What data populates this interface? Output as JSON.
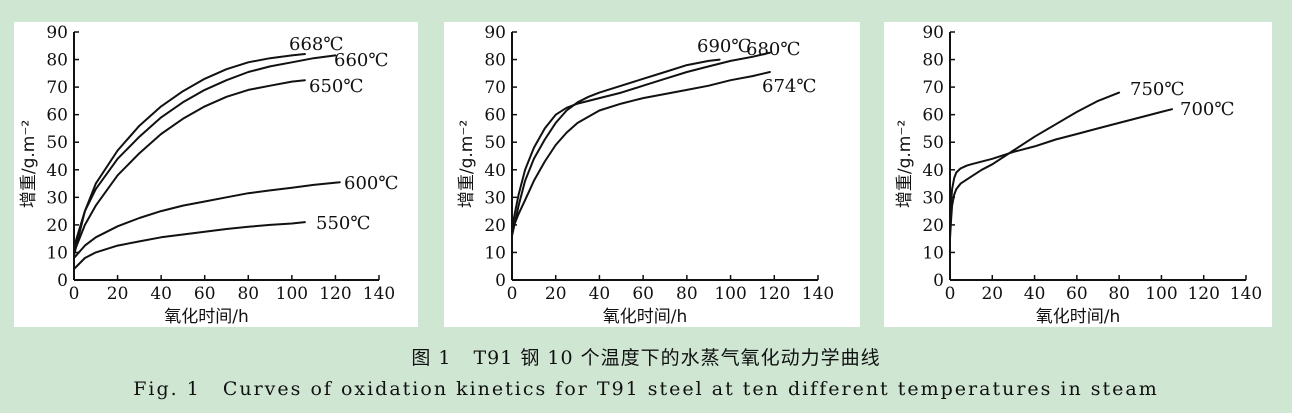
{
  "chart_data": [
    {
      "type": "line",
      "xlabel": "氧化时间/h",
      "ylabel": "增重/g.m⁻²",
      "xlim": [
        0,
        140
      ],
      "ylim": [
        0,
        90
      ],
      "xticks": [
        "0",
        "20",
        "40",
        "60",
        "80",
        "100",
        "120",
        "140"
      ],
      "yticks": [
        "0",
        "10",
        "20",
        "30",
        "40",
        "50",
        "60",
        "70",
        "80",
        "90"
      ],
      "series": [
        {
          "name": "668℃",
          "x": [
            0,
            5,
            10,
            20,
            30,
            40,
            50,
            60,
            70,
            80,
            90,
            100,
            106
          ],
          "y": [
            9,
            25,
            35,
            47,
            56,
            63,
            68.5,
            73,
            76.5,
            79,
            80.5,
            81.5,
            82
          ]
        },
        {
          "name": "660℃",
          "x": [
            0,
            5,
            10,
            20,
            30,
            40,
            50,
            60,
            70,
            80,
            90,
            100,
            110,
            120
          ],
          "y": [
            12,
            25,
            33,
            44,
            52,
            59,
            64.5,
            69,
            72.5,
            75.5,
            77.5,
            79,
            80.5,
            81.5
          ]
        },
        {
          "name": "650℃",
          "x": [
            0,
            5,
            10,
            20,
            30,
            40,
            50,
            60,
            70,
            80,
            90,
            100,
            106
          ],
          "y": [
            10,
            20,
            27,
            38,
            46,
            53,
            58.5,
            63,
            66.5,
            69,
            70.5,
            72,
            72.5
          ]
        },
        {
          "name": "600℃",
          "x": [
            0,
            5,
            10,
            20,
            30,
            40,
            50,
            60,
            70,
            80,
            90,
            100,
            110,
            122
          ],
          "y": [
            8,
            12.5,
            15.5,
            19.5,
            22.5,
            25,
            27,
            28.5,
            30,
            31.5,
            32.5,
            33.5,
            34.5,
            35.5
          ]
        },
        {
          "name": "550℃",
          "x": [
            0,
            5,
            10,
            20,
            30,
            40,
            50,
            60,
            70,
            80,
            90,
            100,
            106
          ],
          "y": [
            4,
            8,
            10,
            12.5,
            14,
            15.5,
            16.5,
            17.5,
            18.5,
            19.3,
            20,
            20.5,
            21
          ]
        }
      ]
    },
    {
      "type": "line",
      "xlabel": "氧化时间/h",
      "ylabel": "增重/g.m⁻²",
      "xlim": [
        0,
        140
      ],
      "ylim": [
        0,
        90
      ],
      "xticks": [
        "0",
        "20",
        "40",
        "60",
        "80",
        "100",
        "120",
        "140"
      ],
      "yticks": [
        "0",
        "10",
        "20",
        "30",
        "40",
        "50",
        "60",
        "70",
        "80",
        "90"
      ],
      "series": [
        {
          "name": "690℃",
          "x": [
            0,
            3,
            6,
            10,
            15,
            20,
            25,
            30,
            35,
            40,
            50,
            60,
            70,
            80,
            90,
            95
          ],
          "y": [
            16,
            27,
            36,
            44,
            51,
            57,
            61.5,
            64.5,
            66.5,
            68,
            70.5,
            73,
            75.5,
            78,
            79.5,
            80
          ]
        },
        {
          "name": "680℃",
          "x": [
            0,
            3,
            6,
            10,
            15,
            20,
            25,
            30,
            40,
            50,
            60,
            70,
            80,
            90,
            100,
            110,
            118
          ],
          "y": [
            19,
            31,
            40,
            48,
            55,
            60,
            62.5,
            64,
            66,
            68,
            70.5,
            73,
            75.5,
            77.5,
            79.5,
            81,
            82.5
          ]
        },
        {
          "name": "674℃",
          "x": [
            0,
            3,
            6,
            10,
            15,
            20,
            25,
            30,
            40,
            50,
            60,
            70,
            80,
            90,
            100,
            110,
            118
          ],
          "y": [
            18,
            24,
            29,
            36,
            43,
            49,
            53.5,
            57,
            61.5,
            64,
            66,
            67.5,
            69,
            70.5,
            72.5,
            74,
            75.5
          ]
        }
      ]
    },
    {
      "type": "line",
      "xlabel": "氧化时间/h",
      "ylabel": "增重/g.m⁻²",
      "xlim": [
        0,
        140
      ],
      "ylim": [
        0,
        90
      ],
      "xticks": [
        "0",
        "20",
        "40",
        "60",
        "80",
        "100",
        "120",
        "140"
      ],
      "yticks": [
        "0",
        "10",
        "20",
        "30",
        "40",
        "50",
        "60",
        "70",
        "80",
        "90"
      ],
      "series": [
        {
          "name": "750℃",
          "x": [
            0,
            0.5,
            1,
            2,
            3,
            5,
            8,
            10,
            15,
            20,
            30,
            40,
            50,
            60,
            70,
            80
          ],
          "y": [
            15,
            22,
            27,
            31,
            33,
            35,
            36.5,
            37.5,
            40,
            42,
            47,
            52,
            56.5,
            61,
            65,
            68
          ]
        },
        {
          "name": "700℃",
          "x": [
            0,
            0.5,
            1,
            2,
            3,
            5,
            8,
            10,
            20,
            30,
            40,
            50,
            60,
            70,
            80,
            90,
            100,
            105
          ],
          "y": [
            18,
            28,
            33,
            37,
            39,
            40.5,
            41.5,
            42,
            44,
            46.5,
            48.5,
            51,
            53,
            55,
            57,
            59,
            61,
            62
          ]
        }
      ]
    }
  ],
  "caption": {
    "cn_label": "图 1",
    "cn_text": "T91 钢 10 个温度下的水蒸气氧化动力学曲线",
    "en_label": "Fig. 1",
    "en_text": "Curves of oxidation kinetics for T91 steel at ten different temperatures in steam"
  }
}
